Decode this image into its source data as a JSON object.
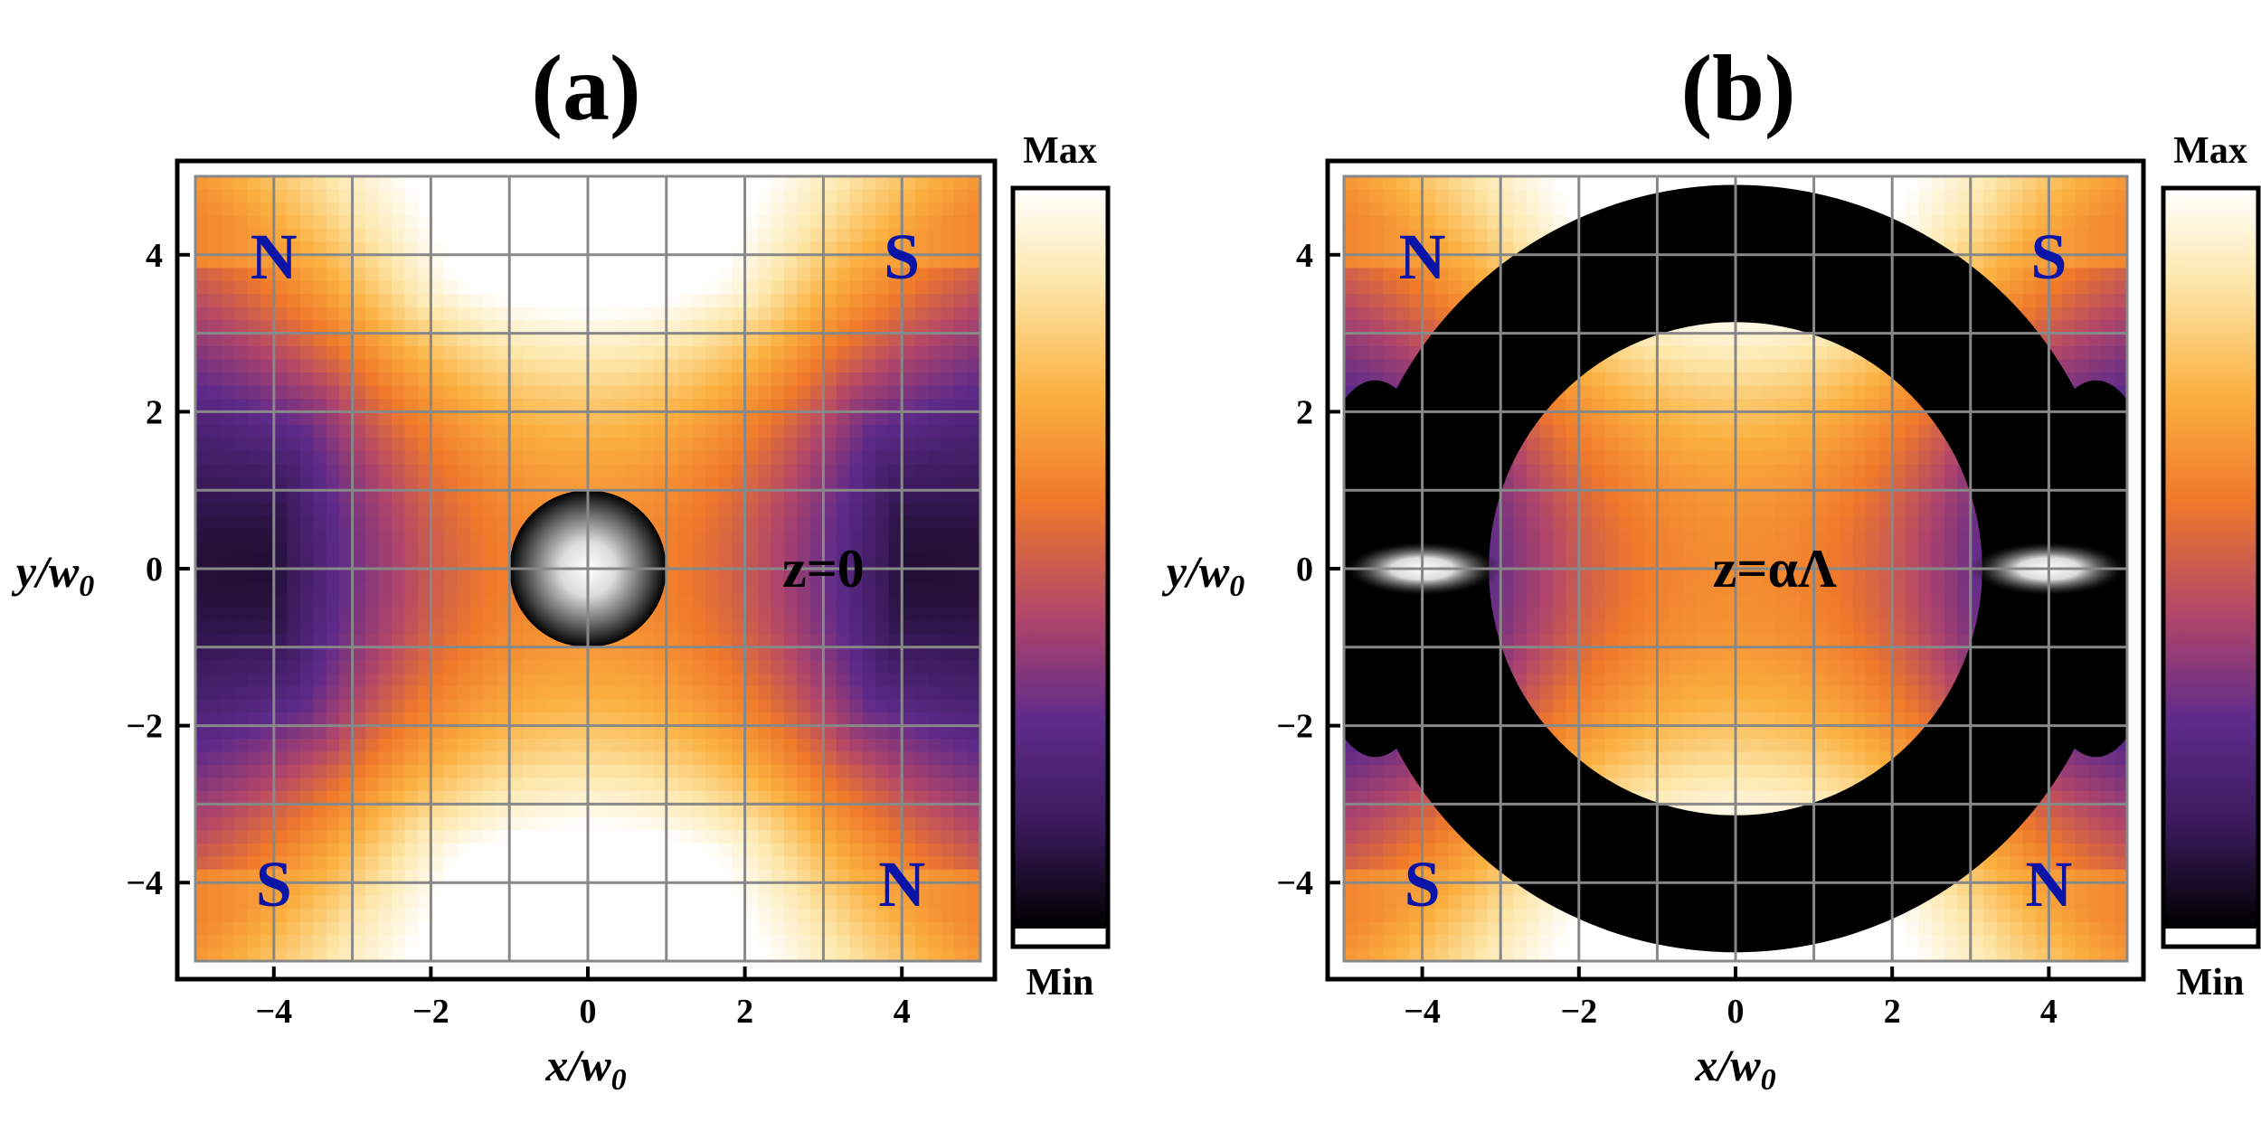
{
  "chart_data": [
    {
      "type": "heatmap",
      "panel": "a",
      "title": "(a)",
      "xlabel": "x/w",
      "xlabel_sub": "0",
      "ylabel": "y/w",
      "ylabel_sub": "0",
      "xlim": [
        -5,
        5
      ],
      "ylim": [
        -5,
        5
      ],
      "xticks": [
        -4,
        -2,
        0,
        2,
        4
      ],
      "yticks": [
        -4,
        -2,
        0,
        2,
        4
      ],
      "xtick_labels": [
        "−4",
        "−2",
        "0",
        "2",
        "4"
      ],
      "ytick_labels": [
        "−4",
        "−2",
        "0",
        "2",
        "4"
      ],
      "grid": true,
      "annotation": "z=0",
      "annotation_pos": [
        3.0,
        0
      ],
      "poles": [
        {
          "label": "N",
          "x": -4,
          "y": 4
        },
        {
          "label": "S",
          "x": 4,
          "y": 4
        },
        {
          "label": "S",
          "x": -4,
          "y": -4
        },
        {
          "label": "N",
          "x": 4,
          "y": -4
        }
      ],
      "beams": [
        {
          "x": 0,
          "y": 0,
          "radius": 1.0
        }
      ],
      "dark_ring": null,
      "colorbar": {
        "max_label": "Max",
        "min_label": "Min"
      }
    },
    {
      "type": "heatmap",
      "panel": "b",
      "title": "(b)",
      "xlabel": "x/w",
      "xlabel_sub": "0",
      "ylabel": "y/w",
      "ylabel_sub": "0",
      "xlim": [
        -5,
        5
      ],
      "ylim": [
        -5,
        5
      ],
      "xticks": [
        -4,
        -2,
        0,
        2,
        4
      ],
      "yticks": [
        -4,
        -2,
        0,
        2,
        4
      ],
      "xtick_labels": [
        "−4",
        "−2",
        "0",
        "2",
        "4"
      ],
      "ytick_labels": [
        "−4",
        "−2",
        "0",
        "2",
        "4"
      ],
      "grid": true,
      "annotation": "z=αΛ",
      "annotation_pos": [
        0.5,
        0
      ],
      "poles": [
        {
          "label": "N",
          "x": -4,
          "y": 4
        },
        {
          "label": "S",
          "x": 4,
          "y": 4
        },
        {
          "label": "S",
          "x": -4,
          "y": -4
        },
        {
          "label": "N",
          "x": 4,
          "y": -4
        }
      ],
      "beams": [
        {
          "x": -4,
          "y": 0,
          "rx": 1.0,
          "ry": 0.35
        },
        {
          "x": 4,
          "y": 0,
          "rx": 1.0,
          "ry": 0.35
        }
      ],
      "dark_ring": {
        "inner_radius": 3.15,
        "outer_radius": 4.9
      },
      "colorbar": {
        "max_label": "Max",
        "min_label": "Min"
      }
    }
  ],
  "colors": {
    "colormap": [
      "#000000",
      "#3b1a5c",
      "#5e2a8a",
      "#b0456a",
      "#f07a2a",
      "#fbb040",
      "#fde6a8",
      "#ffffff"
    ],
    "grid": "#888888",
    "pole": "#0a15a8"
  }
}
